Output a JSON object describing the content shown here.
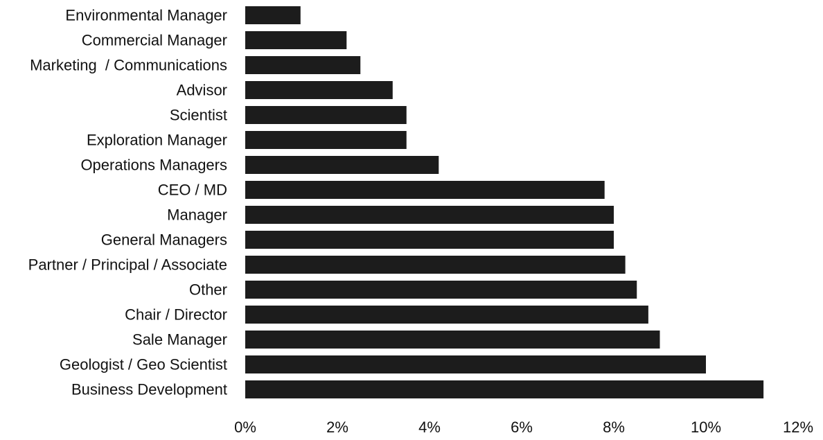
{
  "chart_data": {
    "type": "bar",
    "orientation": "horizontal",
    "categories": [
      "Environmental Manager",
      "Commercial Manager",
      "Marketing  / Communications",
      "Advisor",
      "Scientist",
      "Exploration Manager",
      "Operations Managers",
      "CEO / MD",
      "Manager",
      "General Managers",
      "Partner / Principal / Associate",
      "Other",
      "Chair / Director",
      "Sale Manager",
      "Geologist / Geo Scientist",
      "Business Development"
    ],
    "values": [
      1.2,
      2.2,
      2.5,
      3.2,
      3.5,
      3.5,
      4.2,
      7.8,
      8.0,
      8.0,
      8.25,
      8.5,
      8.75,
      9.0,
      10.0,
      11.25
    ],
    "xlim": [
      0,
      12
    ],
    "x_ticks": [
      0,
      2,
      4,
      6,
      8,
      10,
      12
    ],
    "x_tick_labels": [
      "0%",
      "2%",
      "4%",
      "6%",
      "8%",
      "10%",
      "12%"
    ],
    "title": "",
    "xlabel": "",
    "ylabel": "",
    "grid": false,
    "legend": "none",
    "bar_color": "#1c1c1c"
  }
}
